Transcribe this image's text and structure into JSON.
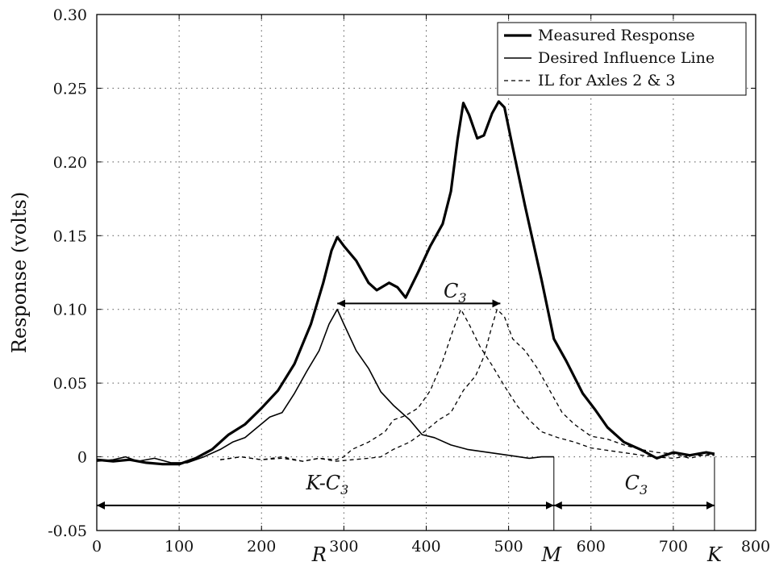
{
  "chart_data": {
    "type": "line",
    "title": "",
    "xlabel": "",
    "ylabel": "Response (volts)",
    "xlim": [
      0,
      800
    ],
    "ylim": [
      -0.05,
      0.3
    ],
    "xticks": [
      0,
      100,
      200,
      300,
      400,
      500,
      600,
      700,
      800
    ],
    "xtick_labels": [
      "0",
      "100",
      "200",
      "300",
      "400",
      "500",
      "600",
      "700",
      "800"
    ],
    "yticks": [
      -0.05,
      0,
      0.05,
      0.1,
      0.15,
      0.2,
      0.25,
      0.3
    ],
    "ytick_labels": [
      "-0.05",
      "0",
      "0.05",
      "0.10",
      "0.15",
      "0.20",
      "0.25",
      "0.30"
    ],
    "grid": true,
    "legend_position": "top-right",
    "series": [
      {
        "name": "Measured Response",
        "style": "thick-solid",
        "points": [
          [
            0,
            -0.002
          ],
          [
            20,
            -0.003
          ],
          [
            40,
            -0.002
          ],
          [
            60,
            -0.004
          ],
          [
            80,
            -0.005
          ],
          [
            100,
            -0.005
          ],
          [
            120,
            -0.001
          ],
          [
            140,
            0.005
          ],
          [
            160,
            0.015
          ],
          [
            180,
            0.022
          ],
          [
            200,
            0.033
          ],
          [
            220,
            0.045
          ],
          [
            240,
            0.063
          ],
          [
            260,
            0.09
          ],
          [
            275,
            0.118
          ],
          [
            285,
            0.14
          ],
          [
            292,
            0.149
          ],
          [
            300,
            0.143
          ],
          [
            315,
            0.133
          ],
          [
            330,
            0.118
          ],
          [
            340,
            0.113
          ],
          [
            355,
            0.118
          ],
          [
            365,
            0.115
          ],
          [
            375,
            0.108
          ],
          [
            390,
            0.125
          ],
          [
            405,
            0.143
          ],
          [
            420,
            0.158
          ],
          [
            430,
            0.18
          ],
          [
            438,
            0.215
          ],
          [
            445,
            0.24
          ],
          [
            452,
            0.232
          ],
          [
            462,
            0.216
          ],
          [
            470,
            0.218
          ],
          [
            480,
            0.233
          ],
          [
            488,
            0.241
          ],
          [
            495,
            0.237
          ],
          [
            505,
            0.21
          ],
          [
            520,
            0.17
          ],
          [
            540,
            0.12
          ],
          [
            555,
            0.08
          ],
          [
            570,
            0.065
          ],
          [
            590,
            0.043
          ],
          [
            605,
            0.032
          ],
          [
            620,
            0.02
          ],
          [
            640,
            0.01
          ],
          [
            660,
            0.005
          ],
          [
            680,
            -0.001
          ],
          [
            700,
            0.003
          ],
          [
            720,
            0.001
          ],
          [
            740,
            0.003
          ],
          [
            750,
            0.002
          ]
        ]
      },
      {
        "name": "Desired Influence Line",
        "style": "thin-solid",
        "points": [
          [
            0,
            -0.003
          ],
          [
            20,
            -0.002
          ],
          [
            35,
            0
          ],
          [
            50,
            -0.003
          ],
          [
            70,
            -0.001
          ],
          [
            90,
            -0.004
          ],
          [
            110,
            -0.004
          ],
          [
            130,
            0
          ],
          [
            150,
            0.005
          ],
          [
            165,
            0.01
          ],
          [
            180,
            0.013
          ],
          [
            195,
            0.02
          ],
          [
            210,
            0.027
          ],
          [
            225,
            0.03
          ],
          [
            240,
            0.043
          ],
          [
            255,
            0.058
          ],
          [
            270,
            0.072
          ],
          [
            282,
            0.09
          ],
          [
            292,
            0.1
          ],
          [
            300,
            0.09
          ],
          [
            315,
            0.072
          ],
          [
            330,
            0.06
          ],
          [
            345,
            0.044
          ],
          [
            360,
            0.035
          ],
          [
            380,
            0.025
          ],
          [
            395,
            0.015
          ],
          [
            410,
            0.013
          ],
          [
            430,
            0.008
          ],
          [
            450,
            0.005
          ],
          [
            475,
            0.003
          ],
          [
            500,
            0.001
          ],
          [
            525,
            -0.001
          ],
          [
            540,
            0
          ],
          [
            555,
            0
          ]
        ]
      },
      {
        "name": "IL for Axles 2 & 3",
        "style": "dashed",
        "points": [
          [
            150,
            -0.002
          ],
          [
            175,
            0
          ],
          [
            200,
            -0.002
          ],
          [
            225,
            0
          ],
          [
            250,
            -0.003
          ],
          [
            270,
            -0.001
          ],
          [
            290,
            -0.002
          ],
          [
            300,
            0
          ],
          [
            310,
            0.005
          ],
          [
            330,
            0.01
          ],
          [
            350,
            0.017
          ],
          [
            360,
            0.025
          ],
          [
            375,
            0.028
          ],
          [
            390,
            0.033
          ],
          [
            405,
            0.045
          ],
          [
            420,
            0.065
          ],
          [
            432,
            0.085
          ],
          [
            442,
            0.1
          ],
          [
            452,
            0.09
          ],
          [
            465,
            0.075
          ],
          [
            480,
            0.062
          ],
          [
            495,
            0.048
          ],
          [
            510,
            0.035
          ],
          [
            525,
            0.025
          ],
          [
            540,
            0.017
          ],
          [
            560,
            0.013
          ],
          [
            580,
            0.01
          ],
          [
            600,
            0.006
          ],
          [
            625,
            0.004
          ],
          [
            650,
            0.002
          ],
          [
            675,
            0
          ],
          [
            700,
            -0.001
          ],
          [
            725,
            0.001
          ],
          [
            750,
            0.001
          ]
        ]
      },
      {
        "name": "",
        "style": "dashed",
        "points": [
          [
            150,
            -0.002
          ],
          [
            175,
            0
          ],
          [
            200,
            -0.002
          ],
          [
            225,
            -0.001
          ],
          [
            250,
            -0.003
          ],
          [
            270,
            -0.001
          ],
          [
            290,
            -0.003
          ],
          [
            310,
            -0.002
          ],
          [
            330,
            -0.001
          ],
          [
            345,
            0
          ],
          [
            360,
            0.005
          ],
          [
            380,
            0.01
          ],
          [
            400,
            0.018
          ],
          [
            415,
            0.025
          ],
          [
            430,
            0.03
          ],
          [
            445,
            0.045
          ],
          [
            460,
            0.055
          ],
          [
            470,
            0.068
          ],
          [
            478,
            0.085
          ],
          [
            486,
            0.1
          ],
          [
            495,
            0.095
          ],
          [
            505,
            0.08
          ],
          [
            520,
            0.072
          ],
          [
            535,
            0.06
          ],
          [
            550,
            0.045
          ],
          [
            565,
            0.03
          ],
          [
            580,
            0.022
          ],
          [
            600,
            0.014
          ],
          [
            620,
            0.012
          ],
          [
            640,
            0.008
          ],
          [
            660,
            0.005
          ],
          [
            680,
            0.003
          ],
          [
            700,
            0.002
          ],
          [
            720,
            -0.001
          ],
          [
            735,
            0.001
          ],
          [
            750,
            0.002
          ]
        ]
      }
    ],
    "annotations": {
      "c3_top": {
        "label": "C",
        "sub": "3",
        "x_from": 292,
        "x_to": 490,
        "y": 0.104,
        "label_x": 435,
        "label_y": 0.108
      },
      "kc3": {
        "label": "K-C",
        "sub": "3",
        "x_from": 0,
        "x_to": 555,
        "y": -0.033,
        "label_x": 280,
        "label_y": -0.022
      },
      "c3_bottom": {
        "label": "C",
        "sub": "3",
        "x_from": 555,
        "x_to": 750,
        "y": -0.033,
        "label_x": 655,
        "label_y": -0.022
      },
      "markers": [
        {
          "label": "R",
          "x": 270
        },
        {
          "label": "M",
          "x": 552
        },
        {
          "label": "K",
          "x": 750
        }
      ],
      "vlines": [
        555,
        750
      ]
    }
  }
}
